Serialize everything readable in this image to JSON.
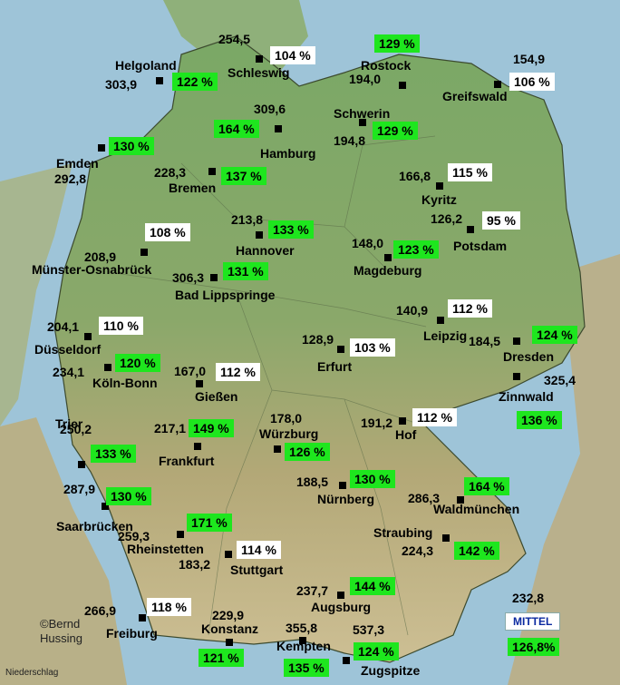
{
  "legend": {
    "title": "MITTEL",
    "average_value": "232,8",
    "average_percent": "126,8%"
  },
  "credit": {
    "line1": "©Bernd",
    "line2": "Hussing"
  },
  "caption": "Niederschlag",
  "colors": {
    "above_normal": "#1ee61e",
    "near_normal": "#ffffff",
    "sea": "#9ec4d8",
    "land": "#6f9f5a"
  },
  "stations": [
    {
      "id": "helgoland",
      "name": "Helgoland",
      "value": "303,9",
      "percent": "122 %",
      "hi": true
    },
    {
      "id": "schleswig",
      "name": "Schleswig",
      "value": "254,5",
      "percent": "104 %",
      "hi": false
    },
    {
      "id": "rostock",
      "name": "Rostock",
      "value": "194,0",
      "percent": "129 %",
      "hi": true
    },
    {
      "id": "greifswald",
      "name": "Greifswald",
      "value": "154,9",
      "percent": "106 %",
      "hi": false
    },
    {
      "id": "hamburg",
      "name": "Hamburg",
      "value": "309,6",
      "percent": "164 %",
      "hi": true
    },
    {
      "id": "schwerin",
      "name": "Schwerin",
      "value": "194,8",
      "percent": "129 %",
      "hi": true
    },
    {
      "id": "emden",
      "name": "Emden",
      "value": "292,8",
      "percent": "130 %",
      "hi": true
    },
    {
      "id": "bremen",
      "name": "Bremen",
      "value": "228,3",
      "percent": "137 %",
      "hi": true
    },
    {
      "id": "kyritz",
      "name": "Kyritz",
      "value": "166,8",
      "percent": "115 %",
      "hi": false
    },
    {
      "id": "hannover",
      "name": "Hannover",
      "value": "213,8",
      "percent": "133 %",
      "hi": true
    },
    {
      "id": "potsdam",
      "name": "Potsdam",
      "value": "126,2",
      "percent": "95 %",
      "hi": false
    },
    {
      "id": "muenster",
      "name": "Münster-Osnabrück",
      "value": "208,9",
      "percent": "108 %",
      "hi": false
    },
    {
      "id": "magdeburg",
      "name": "Magdeburg",
      "value": "148,0",
      "percent": "123 %",
      "hi": true
    },
    {
      "id": "lippspringe",
      "name": "Bad Lippspringe",
      "value": "306,3",
      "percent": "131 %",
      "hi": true
    },
    {
      "id": "duesseldorf",
      "name": "Düsseldorf",
      "value": "204,1",
      "percent": "110 %",
      "hi": false
    },
    {
      "id": "leipzig",
      "name": "Leipzig",
      "value": "140,9",
      "percent": "112 %",
      "hi": false
    },
    {
      "id": "erfurt",
      "name": "Erfurt",
      "value": "128,9",
      "percent": "103 %",
      "hi": false
    },
    {
      "id": "dresden",
      "name": "Dresden",
      "value": "184,5",
      "percent": "124 %",
      "hi": true
    },
    {
      "id": "koeln",
      "name": "Köln-Bonn",
      "value": "234,1",
      "percent": "120 %",
      "hi": true
    },
    {
      "id": "giessen",
      "name": "Gießen",
      "value": "167,0",
      "percent": "112 %",
      "hi": false
    },
    {
      "id": "zinnwald",
      "name": "Zinnwald",
      "value": "325,4",
      "percent": "136 %",
      "hi": true
    },
    {
      "id": "trier",
      "name": "Trier",
      "value": "250,2",
      "percent": "133 %",
      "hi": true
    },
    {
      "id": "frankfurt",
      "name": "Frankfurt",
      "value": "217,1",
      "percent": "149 %",
      "hi": true
    },
    {
      "id": "wuerzburg",
      "name": "Würzburg",
      "value": "178,0",
      "percent": "126 %",
      "hi": true
    },
    {
      "id": "hof",
      "name": "Hof",
      "value": "191,2",
      "percent": "112 %",
      "hi": false
    },
    {
      "id": "nuernberg",
      "name": "Nürnberg",
      "value": "188,5",
      "percent": "130 %",
      "hi": true
    },
    {
      "id": "saarbruecken",
      "name": "Saarbrücken",
      "value": "287,9",
      "percent": "130 %",
      "hi": true
    },
    {
      "id": "waldmuenchen",
      "name": "Waldmünchen",
      "value": "286,3",
      "percent": "164 %",
      "hi": true
    },
    {
      "id": "rheinstetten",
      "name": "Rheinstetten",
      "value": "259,3",
      "percent": "171 %",
      "hi": true
    },
    {
      "id": "straubing",
      "name": "Straubing",
      "value": "224,3",
      "percent": "142 %",
      "hi": true
    },
    {
      "id": "stuttgart",
      "name": "Stuttgart",
      "value": "183,2",
      "percent": "114 %",
      "hi": false
    },
    {
      "id": "augsburg",
      "name": "Augsburg",
      "value": "237,7",
      "percent": "144 %",
      "hi": true
    },
    {
      "id": "freiburg",
      "name": "Freiburg",
      "value": "266,9",
      "percent": "118 %",
      "hi": false
    },
    {
      "id": "konstanz",
      "name": "Konstanz",
      "value": "229,9",
      "percent": "121 %",
      "hi": true
    },
    {
      "id": "kempten",
      "name": "Kempten",
      "value": "355,8",
      "percent": "135 %",
      "hi": true
    },
    {
      "id": "zugspitze",
      "name": "Zugspitze",
      "value": "537,3",
      "percent": "124 %",
      "hi": true
    }
  ]
}
